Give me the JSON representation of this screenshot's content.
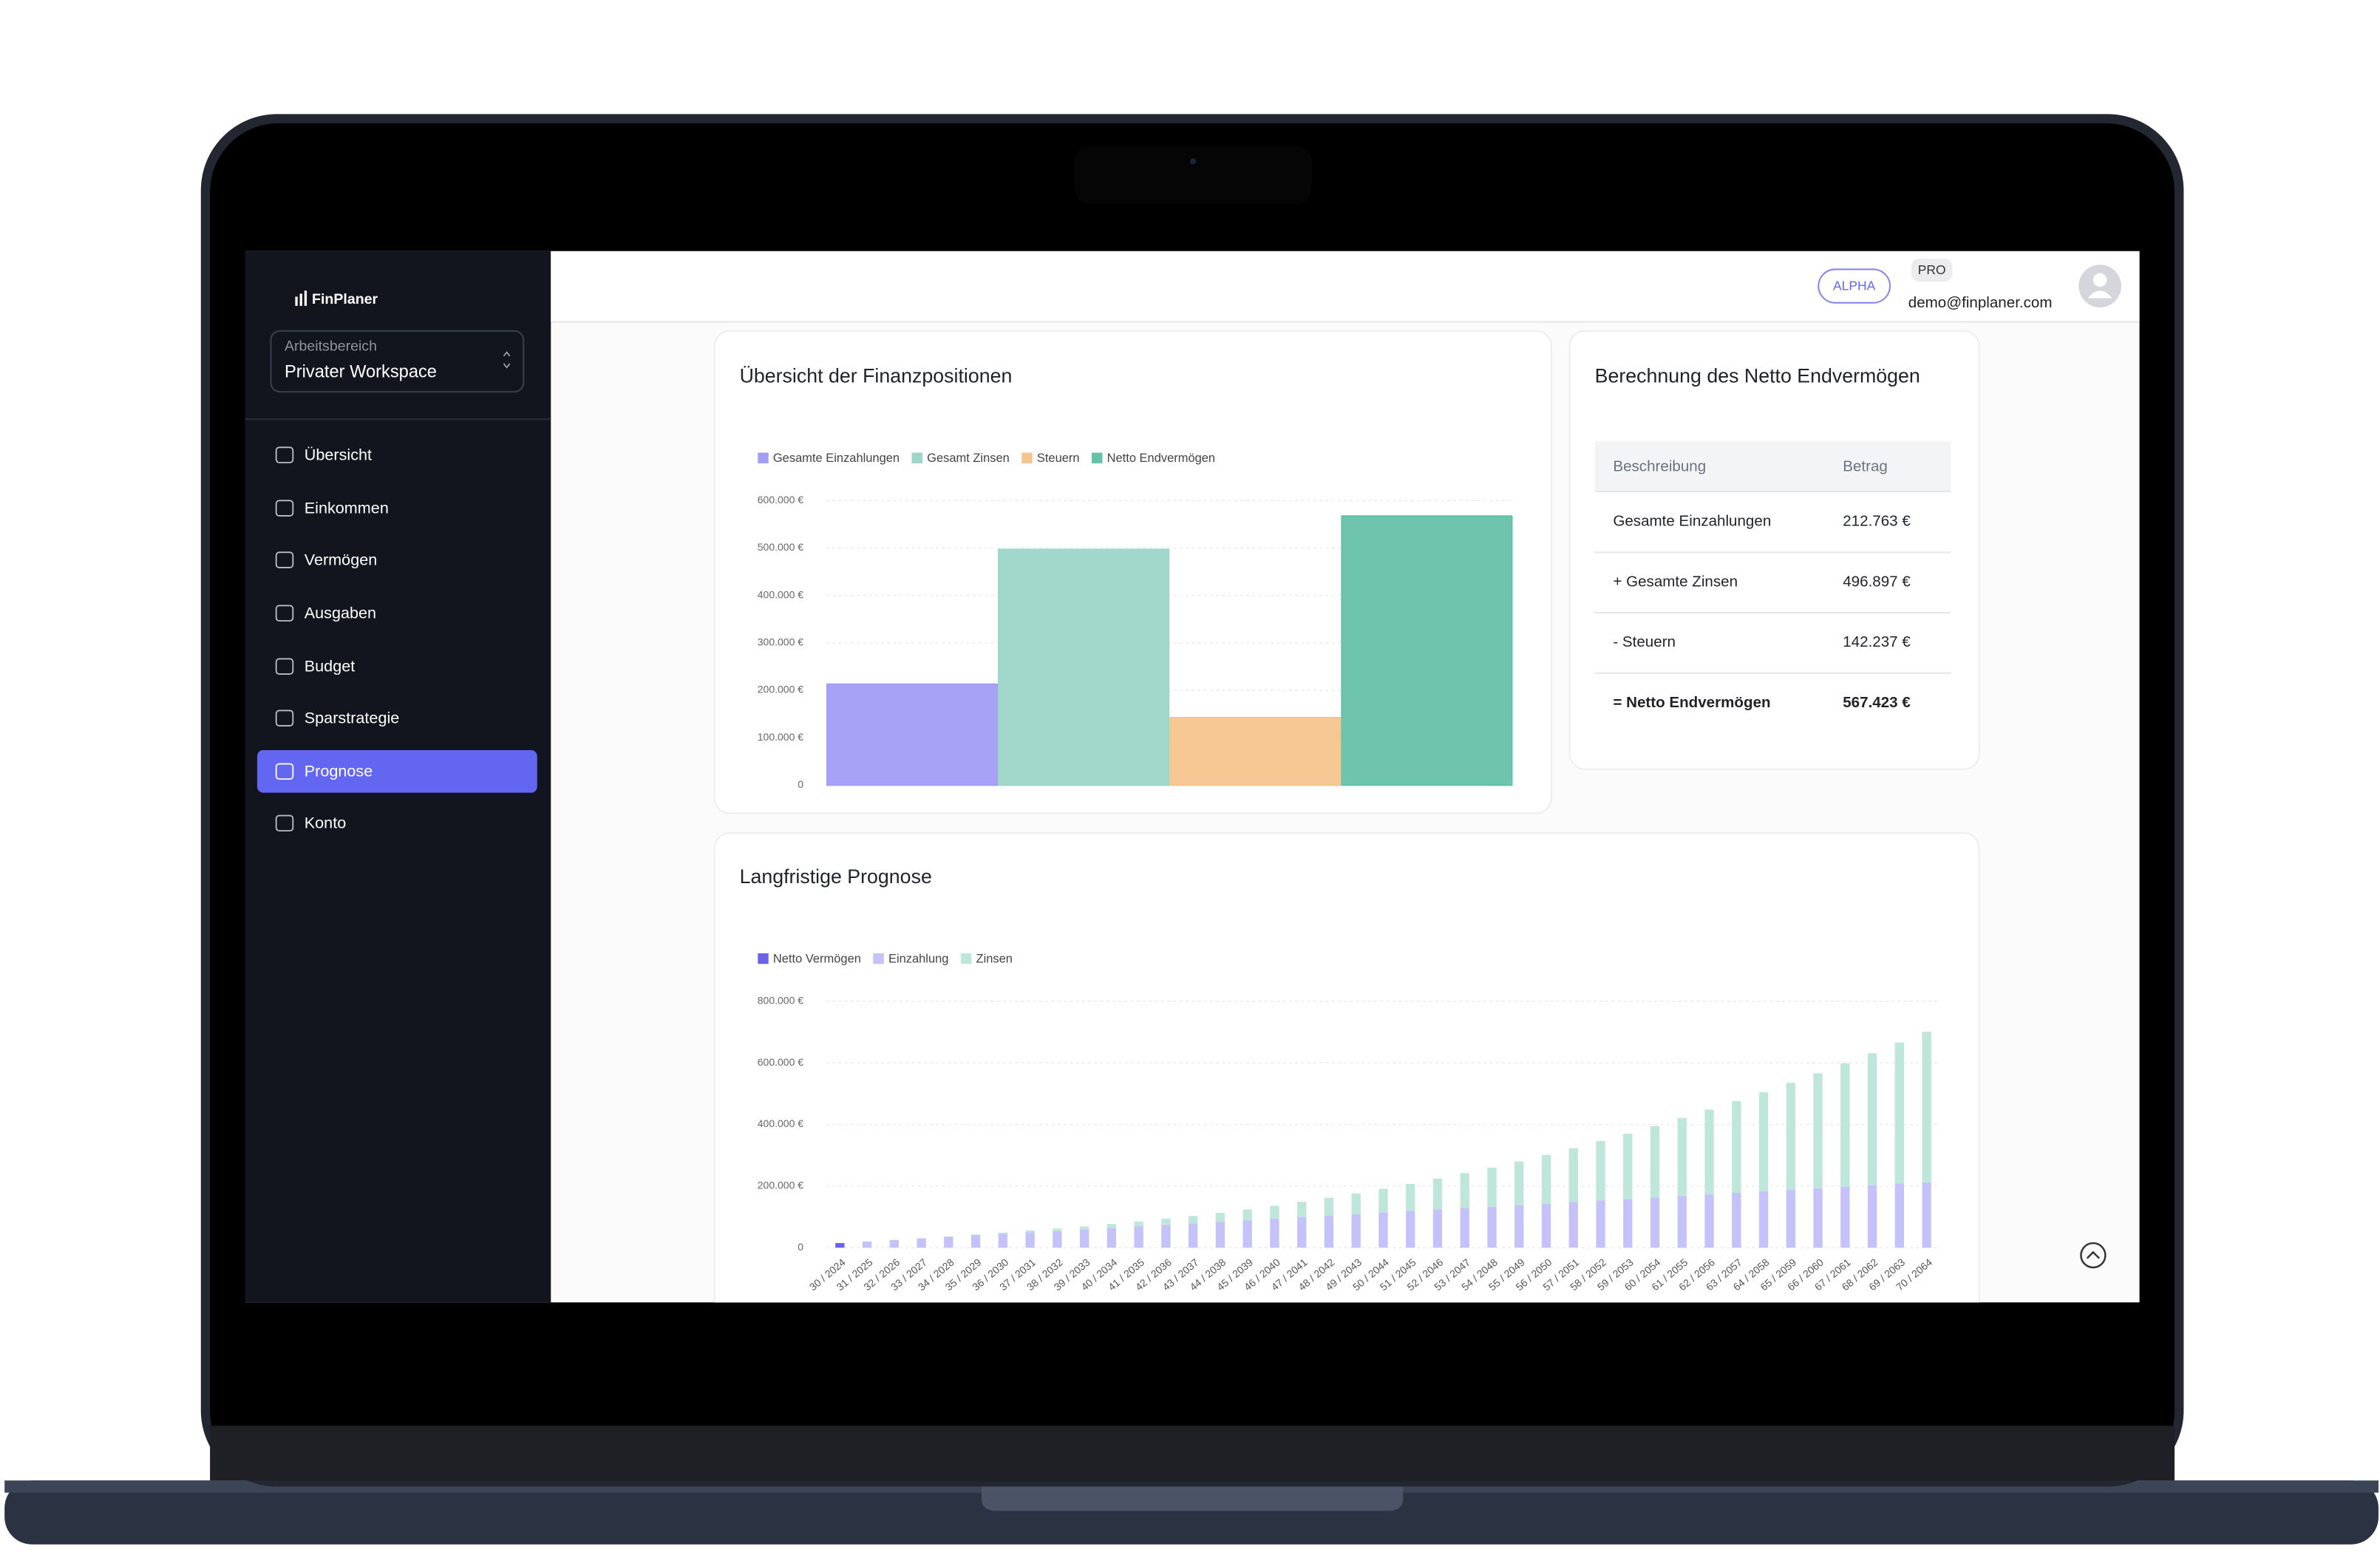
{
  "app": {
    "brand": "FinPlaner",
    "workspace_label": "Arbeitsbereich",
    "workspace": "Privater Workspace",
    "nav": [
      {
        "label": "Übersicht"
      },
      {
        "label": "Einkommen"
      },
      {
        "label": "Vermögen"
      },
      {
        "label": "Ausgaben"
      },
      {
        "label": "Budget"
      },
      {
        "label": "Sparstrategie"
      },
      {
        "label": "Prognose",
        "active": true
      },
      {
        "label": "Konto"
      }
    ],
    "badges": [
      "ALPHA",
      "PRO"
    ],
    "email": "demo@finplaner.com"
  },
  "table": {
    "title": "Berechnung des Netto Endvermögen",
    "header": [
      "Beschreibung",
      "Betrag"
    ],
    "rows": [
      [
        "Gesamte Einzahlungen",
        "212.763 €"
      ],
      [
        "+ Gesamte Zinsen",
        "496.897 €"
      ],
      [
        "- Steuern",
        "142.237 €"
      ],
      [
        "= Netto Endvermögen",
        "567.423 €"
      ]
    ]
  },
  "chart_data": [
    {
      "type": "bar",
      "title": "Übersicht der Finanzpositionen",
      "categories": [
        "Gesamte Einzahlungen",
        "Gesamt Zinsen",
        "Steuern",
        "Netto Endvermögen"
      ],
      "values": [
        212763,
        496897,
        142237,
        567423
      ],
      "colors": [
        "#a39df7",
        "#9dd6c8",
        "#f4c58e",
        "#66c1a9"
      ],
      "ylim": [
        0,
        600000
      ],
      "yticks": [
        0,
        {
          "value": 100000,
          "label": "100.000 €"
        },
        {
          "value": 200000,
          "label": "200.000 €"
        },
        {
          "value": 300000,
          "label": "300.000 €"
        },
        {
          "value": 400000,
          "label": "400.000 €"
        },
        {
          "value": 500000,
          "label": "500.000 €"
        },
        {
          "value": 600000,
          "label": "600.000 €"
        }
      ],
      "grid": true,
      "legend": "top-left"
    },
    {
      "type": "bar",
      "stacked": true,
      "title": "Langfristige Prognose",
      "categories": [
        "30 / 2024",
        "31 / 2025",
        "32 / 2026",
        "33 / 2027",
        "34 / 2028",
        "35 / 2029",
        "36 / 2030",
        "37 / 2031",
        "38 / 2032",
        "39 / 2033",
        "40 / 2034",
        "41 / 2035",
        "42 / 2036",
        "43 / 2037",
        "44 / 2038",
        "45 / 2039",
        "46 / 2040",
        "47 / 2041",
        "48 / 2042",
        "49 / 2043",
        "50 / 2044",
        "51 / 2045",
        "52 / 2046",
        "53 / 2047",
        "54 / 2048",
        "55 / 2049",
        "56 / 2050",
        "57 / 2051",
        "58 / 2052",
        "59 / 2053",
        "60 / 2054",
        "61 / 2055",
        "62 / 2056",
        "63 / 2057",
        "64 / 2058",
        "65 / 2059",
        "66 / 2060",
        "67 / 2061",
        "68 / 2062",
        "69 / 2063",
        "70 / 2064"
      ],
      "series": [
        {
          "name": "Netto Vermögen",
          "color": "#6b62e8",
          "values": [
            15000,
            null,
            null,
            null,
            null,
            null,
            null,
            null,
            null,
            null,
            null,
            null,
            null,
            null,
            null,
            null,
            null,
            null,
            null,
            null,
            null,
            null,
            null,
            null,
            null,
            null,
            null,
            null,
            null,
            null,
            null,
            null,
            null,
            null,
            null,
            null,
            null,
            null,
            null,
            null,
            null
          ]
        },
        {
          "name": "Einzahlung",
          "color": "#c5c2fa",
          "values": [
            null,
            20000,
            25000,
            30000,
            35000,
            40000,
            45000,
            50000,
            54000,
            59000,
            64000,
            69000,
            74000,
            79000,
            84000,
            89000,
            94000,
            99000,
            104000,
            109000,
            114000,
            119000,
            124000,
            129000,
            133000,
            138000,
            143000,
            148000,
            153000,
            158000,
            163000,
            168000,
            173000,
            178000,
            183000,
            188000,
            193000,
            198000,
            203000,
            208000,
            212000
          ]
        },
        {
          "name": "Zinsen",
          "color": "#bfe6da",
          "values": [
            null,
            0,
            500,
            1000,
            2000,
            3000,
            4000,
            6000,
            8000,
            10000,
            13000,
            16000,
            20000,
            24000,
            29000,
            35000,
            42000,
            50000,
            58000,
            67000,
            77000,
            88000,
            100000,
            113000,
            127000,
            142000,
            158000,
            175000,
            193000,
            212000,
            232000,
            253000,
            275000,
            298000,
            322000,
            347000,
            373000,
            400000,
            428000,
            458000,
            489000
          ]
        }
      ],
      "ylim": [
        0,
        800000
      ],
      "yticks": [
        0,
        {
          "value": 200000,
          "label": "200.000 €"
        },
        {
          "value": 400000,
          "label": "400.000 €"
        },
        {
          "value": 600000,
          "label": "600.000 €"
        },
        {
          "value": 800000,
          "label": "800.000 €"
        }
      ],
      "grid": true,
      "legend": "top-left"
    }
  ]
}
